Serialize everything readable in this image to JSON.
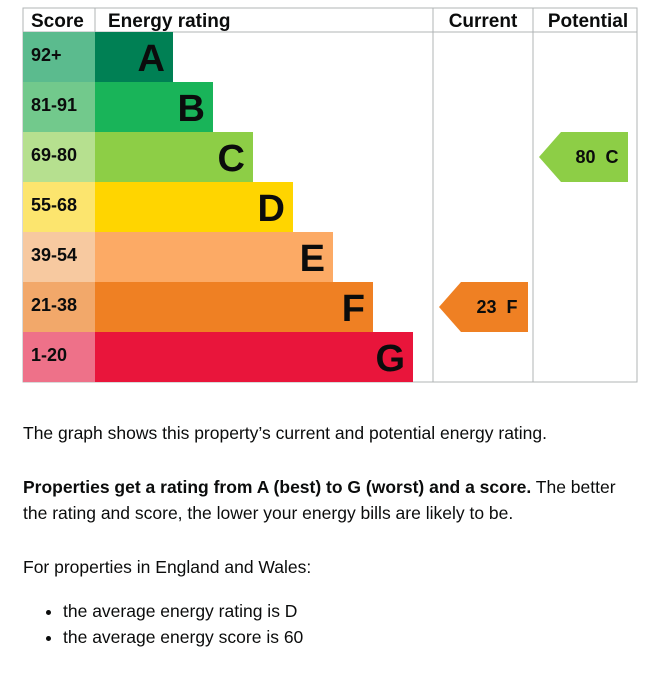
{
  "headers": {
    "score": "Score",
    "rating": "Energy rating",
    "current": "Current",
    "potential": "Potential"
  },
  "chart_data": {
    "type": "bar",
    "bands": [
      {
        "letter": "A",
        "range": "92+",
        "color": "#008054",
        "bg": "#5bbb8e"
      },
      {
        "letter": "B",
        "range": "81-91",
        "color": "#19b459",
        "bg": "#72c98c"
      },
      {
        "letter": "C",
        "range": "69-80",
        "color": "#8dce46",
        "bg": "#b6e08f"
      },
      {
        "letter": "D",
        "range": "55-68",
        "color": "#ffd500",
        "bg": "#fce56e"
      },
      {
        "letter": "E",
        "range": "39-54",
        "color": "#fcaa65",
        "bg": "#f7c9a0"
      },
      {
        "letter": "F",
        "range": "21-38",
        "color": "#ef8023",
        "bg": "#f2a86a"
      },
      {
        "letter": "G",
        "range": "1-20",
        "color": "#e9153b",
        "bg": "#ee7189"
      }
    ],
    "current": {
      "score": 23,
      "letter": "F",
      "label": "23  F",
      "color": "#ef8023"
    },
    "potential": {
      "score": 80,
      "letter": "C",
      "label": "80  C",
      "color": "#8dce46"
    }
  },
  "text": {
    "p1": "The graph shows this property’s current and potential energy rating.",
    "p2_bold": "Properties get a rating from A (best) to G (worst) and a score.",
    "p2_rest": " The better the rating and score, the lower your energy bills are likely to be.",
    "p3": "For properties in England and Wales:",
    "bullets": [
      "the average energy rating is D",
      "the average energy score is 60"
    ]
  }
}
